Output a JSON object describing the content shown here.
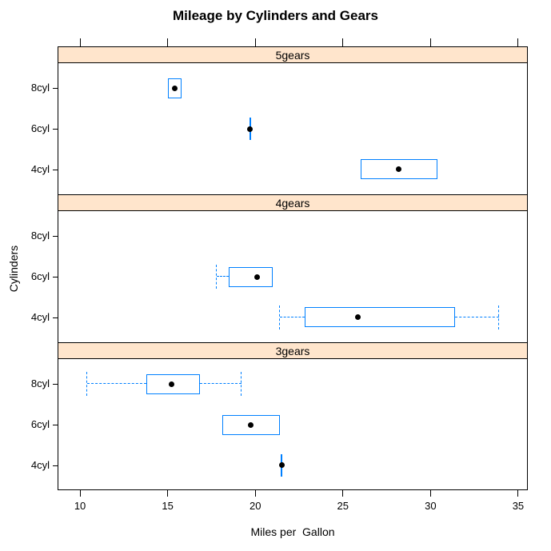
{
  "title": "Mileage by Cylinders and Gears",
  "chart_data": {
    "type": "boxplot",
    "title": "Mileage by Cylinders and Gears",
    "xlabel": "Miles per  Gallon",
    "ylabel": "Cylinders",
    "x_ticks": [
      10,
      15,
      20,
      25,
      30,
      35
    ],
    "xlim": [
      8.72,
      35.55
    ],
    "grid": false,
    "legend": "none",
    "orientation": "horizontal",
    "panel_order_note": "panels listed top to bottom",
    "row_labels": [
      "8cyl",
      "6cyl",
      "4cyl"
    ],
    "colors": {
      "box": "#0080ff",
      "whisker": "#0080ff",
      "median_dot": "#000000",
      "strip_background": "#ffe5cc",
      "border": "#000000",
      "background": "#ffffff"
    },
    "panels": [
      {
        "strip_label": "5gears",
        "rows": [
          {
            "label": "8cyl",
            "whisker_low": 15.0,
            "q1": 15.0,
            "median": 15.4,
            "q3": 15.8,
            "whisker_high": 15.8
          },
          {
            "label": "6cyl",
            "whisker_low": 19.7,
            "q1": 19.7,
            "median": 19.7,
            "q3": 19.7,
            "whisker_high": 19.7
          },
          {
            "label": "4cyl",
            "whisker_low": 26.0,
            "q1": 26.0,
            "median": 28.2,
            "q3": 30.4,
            "whisker_high": 30.4
          }
        ]
      },
      {
        "strip_label": "4gears",
        "rows": [
          {
            "label": "8cyl",
            "whisker_low": null,
            "q1": null,
            "median": null,
            "q3": null,
            "whisker_high": null
          },
          {
            "label": "6cyl",
            "whisker_low": 17.8,
            "q1": 18.5,
            "median": 20.1,
            "q3": 21.0,
            "whisker_high": 21.0
          },
          {
            "label": "4cyl",
            "whisker_low": 21.4,
            "q1": 22.8,
            "median": 25.85,
            "q3": 31.4,
            "whisker_high": 33.9
          }
        ]
      },
      {
        "strip_label": "3gears",
        "rows": [
          {
            "label": "8cyl",
            "whisker_low": 10.4,
            "q1": 13.8,
            "median": 15.2,
            "q3": 16.85,
            "whisker_high": 19.2
          },
          {
            "label": "6cyl",
            "whisker_low": 18.1,
            "q1": 18.1,
            "median": 19.75,
            "q3": 21.4,
            "whisker_high": 21.4
          },
          {
            "label": "4cyl",
            "whisker_low": 21.5,
            "q1": 21.5,
            "median": 21.5,
            "q3": 21.5,
            "whisker_high": 21.5
          }
        ]
      }
    ]
  }
}
